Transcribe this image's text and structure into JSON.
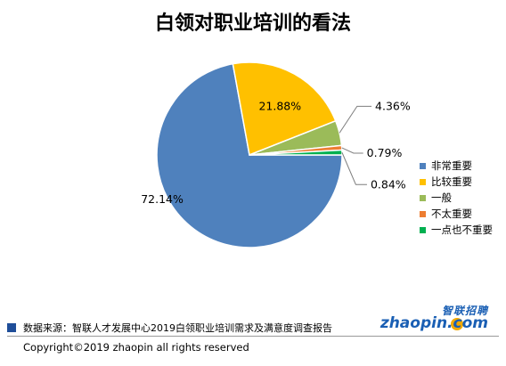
{
  "chart_data": {
    "type": "pie",
    "title": "白领对职业培训的看法",
    "slices": [
      {
        "label": "非常重要",
        "value": 72.14,
        "value_label": "72.14%",
        "color": "#4f81bd"
      },
      {
        "label": "比较重要",
        "value": 21.88,
        "value_label": "21.88%",
        "color": "#ffc000"
      },
      {
        "label": "一般",
        "value": 4.36,
        "value_label": "4.36%",
        "color": "#9bbb59"
      },
      {
        "label": "不太重要",
        "value": 0.79,
        "value_label": "0.79%",
        "color": "#ed7d31"
      },
      {
        "label": "一点也不重要",
        "value": 0.84,
        "value_label": "0.84%",
        "color": "#00b050"
      }
    ],
    "legend_position": "right"
  },
  "source": {
    "text": "数据来源：智联人才发展中心2019白领职业培训需求及满意度调查报告",
    "mark_color": "#1f4e99"
  },
  "logo": {
    "cn": "智联招聘",
    "en": "zhaopin.com"
  },
  "copyright": "Copyright©2019 zhaopin all rights reserved"
}
